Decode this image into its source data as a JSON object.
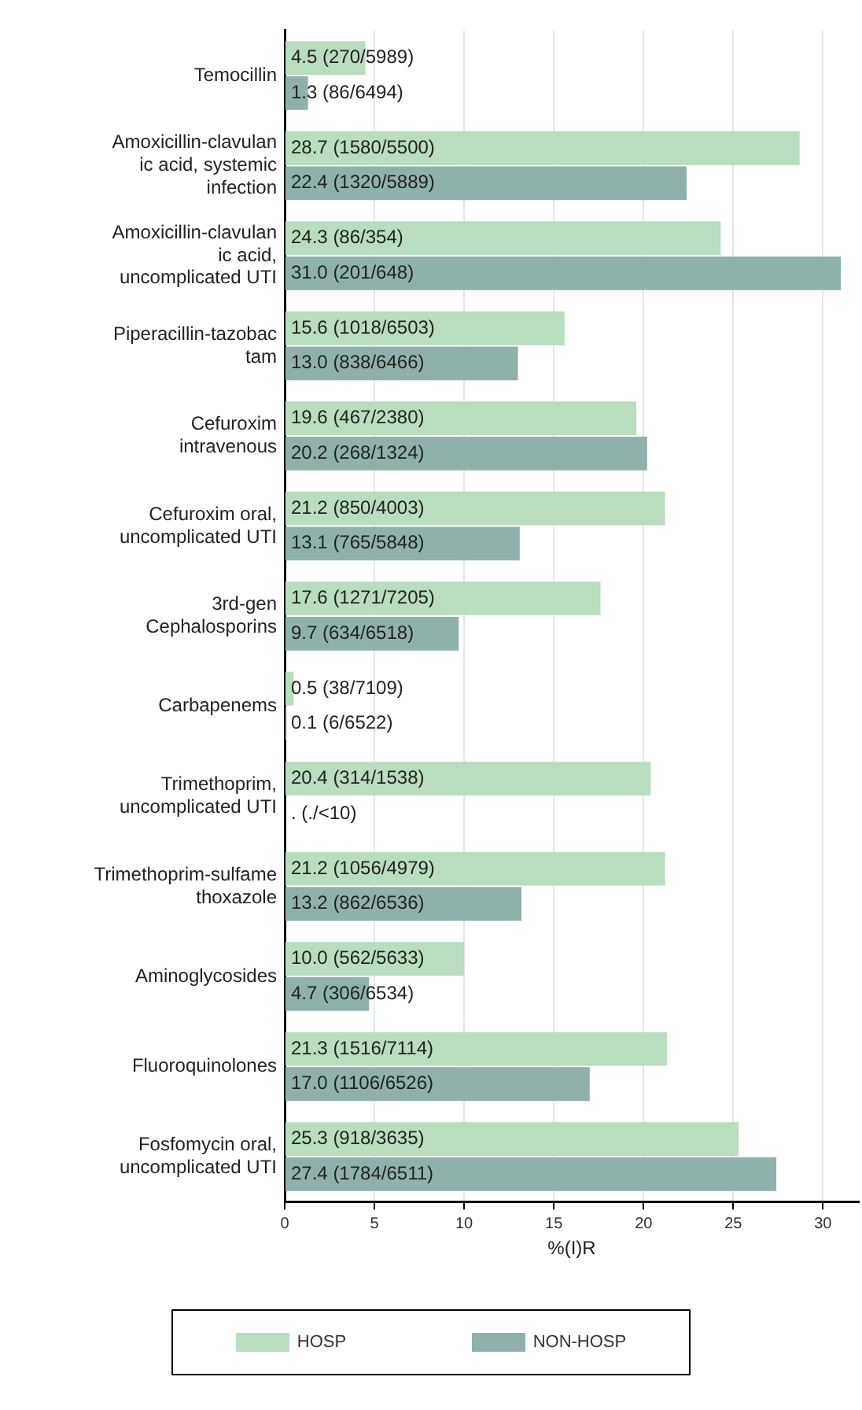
{
  "chart_data": {
    "type": "bar",
    "orientation": "horizontal",
    "xlabel": "%(I)R",
    "categories": [
      "Temocillin",
      "Amoxicillin-clavulan\nic acid, systemic\ninfection",
      "Amoxicillin-clavulan\nic acid,\nuncomplicated UTI",
      "Piperacillin-tazobac\ntam",
      "Cefuroxim\nintravenous",
      "Cefuroxim oral,\nuncomplicated UTI",
      "3rd-gen\nCephalosporins",
      "Carbapenems",
      "Trimethoprim,\nuncomplicated UTI",
      "Trimethoprim-sulfame\nthoxazole",
      "Aminoglycosides",
      "Fluoroquinolones",
      "Fosfomycin oral,\nuncomplicated UTI"
    ],
    "series": [
      {
        "name": "HOSP",
        "color": "#badcbf",
        "values": [
          4.5,
          28.7,
          24.3,
          15.6,
          19.6,
          21.2,
          17.6,
          0.5,
          20.4,
          21.2,
          10.0,
          21.3,
          25.3
        ],
        "value_labels": [
          "4.5 (270/5989)",
          "28.7 (1580/5500)",
          "24.3 (86/354)",
          "15.6 (1018/6503)",
          "19.6 (467/2380)",
          "21.2 (850/4003)",
          "17.6 (1271/7205)",
          "0.5 (38/7109)",
          "20.4 (314/1538)",
          "21.2 (1056/4979)",
          "10.0 (562/5633)",
          "21.3 (1516/7114)",
          "25.3 (918/3635)"
        ]
      },
      {
        "name": "NON-HOSP",
        "color": "#90b1ab",
        "values": [
          1.3,
          22.4,
          31.0,
          13.0,
          20.2,
          13.1,
          9.7,
          0.1,
          null,
          13.2,
          4.7,
          17.0,
          27.4
        ],
        "value_labels": [
          "1.3 (86/6494)",
          "22.4 (1320/5889)",
          "31.0 (201/648)",
          "13.0 (838/6466)",
          "20.2 (268/1324)",
          "13.1 (765/5848)",
          "9.7 (634/6518)",
          "0.1 (6/6522)",
          ". (./<10)",
          "13.2 (862/6536)",
          "4.7 (306/6534)",
          "17.0 (1106/6526)",
          "27.4 (1784/6511)"
        ]
      }
    ],
    "xlim": [
      0,
      32
    ],
    "xticks": [
      0,
      5,
      10,
      15,
      20,
      25,
      30
    ],
    "grid": "x",
    "legend": "bottom"
  }
}
